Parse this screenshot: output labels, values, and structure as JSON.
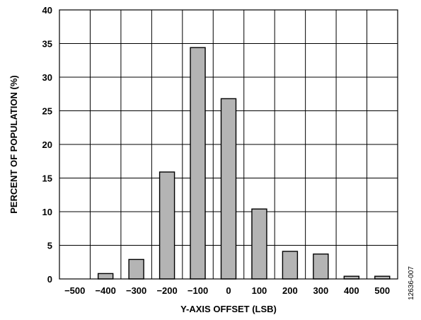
{
  "chart_data": {
    "type": "bar",
    "categories": [
      "−500",
      "−400",
      "−300",
      "−200",
      "−100",
      "0",
      "100",
      "200",
      "300",
      "400",
      "500"
    ],
    "x": [
      -500,
      -400,
      -300,
      -200,
      -100,
      0,
      100,
      200,
      300,
      400,
      500
    ],
    "values": [
      0,
      0.8,
      2.9,
      15.9,
      34.4,
      26.8,
      10.4,
      4.1,
      3.7,
      0.4,
      0.4
    ],
    "title": "",
    "xlabel": "Y-AXIS OFFSET (LSB)",
    "ylabel": "PERCENT OF POPULATION (%)",
    "ylim": [
      0,
      40
    ],
    "yticks": [
      0,
      5,
      10,
      15,
      20,
      25,
      30,
      35,
      40
    ],
    "grid": true,
    "bar_color": "#b4b4b4",
    "bar_edge_color": "#000000"
  },
  "figure_id": "12636-007"
}
